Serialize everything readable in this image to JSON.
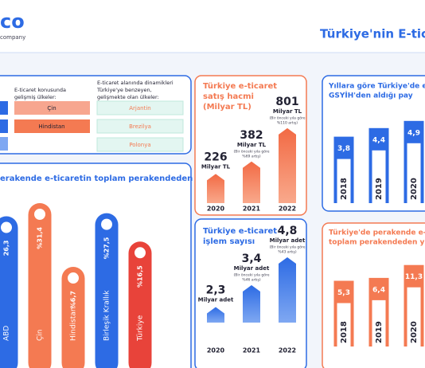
{
  "header": {
    "logo": "co",
    "logo_sub": "company",
    "title": "Türkiye'nin E-tica"
  },
  "countries_panel": {
    "developed_title": [
      "E-ticaret konusunda",
      "gelişmiş ülkeler:"
    ],
    "developed": [
      "Çin",
      "Hindistan"
    ],
    "developing_title": [
      "E-ticaret alanında dinamikleri",
      "Türkiye'ye benzeyen,",
      "gelişmekte olan ülkeler:"
    ],
    "developing": [
      "Arjantin",
      "Brezilya",
      "Polonya"
    ]
  },
  "share_panel": {
    "title": "erakende e-ticaretin toplam perakendeden",
    "bars": [
      {
        "country": "ABD",
        "value": 26.3,
        "label": "26,3",
        "color": "#2d6be4"
      },
      {
        "country": "Çin",
        "value": 31.4,
        "label": "%31,4",
        "color": "#f47a52"
      },
      {
        "country": "Hindistan",
        "value": 6.7,
        "label": "%6,7",
        "color": "#f47a52"
      },
      {
        "country": "Birleşik Krallık",
        "value": 27.5,
        "label": "%27,5",
        "color": "#2d6be4"
      },
      {
        "country": "Türkiye",
        "value": 16.5,
        "label": "%16,5",
        "color": "#e8433a"
      }
    ]
  },
  "sales_panel": {
    "title": [
      "Türkiye e-ticaret",
      "satış hacmi",
      "(Milyar TL)"
    ],
    "bars": [
      {
        "year": "2020",
        "value": 226,
        "unit": "Milyar TL",
        "note": []
      },
      {
        "year": "2021",
        "value": 382,
        "unit": "Milyar TL",
        "note": [
          "(Bir önceki yıla göre",
          "%69 artış)"
        ]
      },
      {
        "year": "2022",
        "value": 801,
        "unit": "Milyar TL",
        "note": [
          "(Bir önceki yıla göre",
          "%110 artış)"
        ]
      }
    ]
  },
  "transactions_panel": {
    "title": [
      "Türkiye e-ticaret",
      "işlem sayısı"
    ],
    "bars": [
      {
        "year": "2020",
        "value": 2.3,
        "label": "2,3",
        "unit": "Milyar adet",
        "note": []
      },
      {
        "year": "2021",
        "value": 3.4,
        "label": "3,4",
        "unit": "Milyar adet",
        "note": [
          "(Bir önceki yıla göre",
          "%46 artış)"
        ]
      },
      {
        "year": "2022",
        "value": 4.8,
        "label": "4,8",
        "unit": "Milyar adet",
        "note": [
          "(Bir önceki yıla göre",
          "%43 artış)"
        ]
      }
    ]
  },
  "gdp_panel": {
    "title": [
      "Yıllara göre Türkiye'de e-ti",
      "GSYİH'den aldığı pay"
    ],
    "bars": [
      {
        "year": "2018",
        "value": 3.8,
        "label": "3,8"
      },
      {
        "year": "2019",
        "value": 4.4,
        "label": "4,4"
      },
      {
        "year": "2020",
        "value": 4.9,
        "label": "4,9"
      }
    ]
  },
  "retail_panel": {
    "title": [
      "Türkiye'de perakende e-ti",
      "toplam perakendeden yılla"
    ],
    "bars": [
      {
        "year": "2018",
        "value": 5.3,
        "label": "5,3"
      },
      {
        "year": "2019",
        "value": 6.4,
        "label": "6,4"
      },
      {
        "year": "2020",
        "value": 11.3,
        "label": "11,3"
      }
    ]
  }
}
